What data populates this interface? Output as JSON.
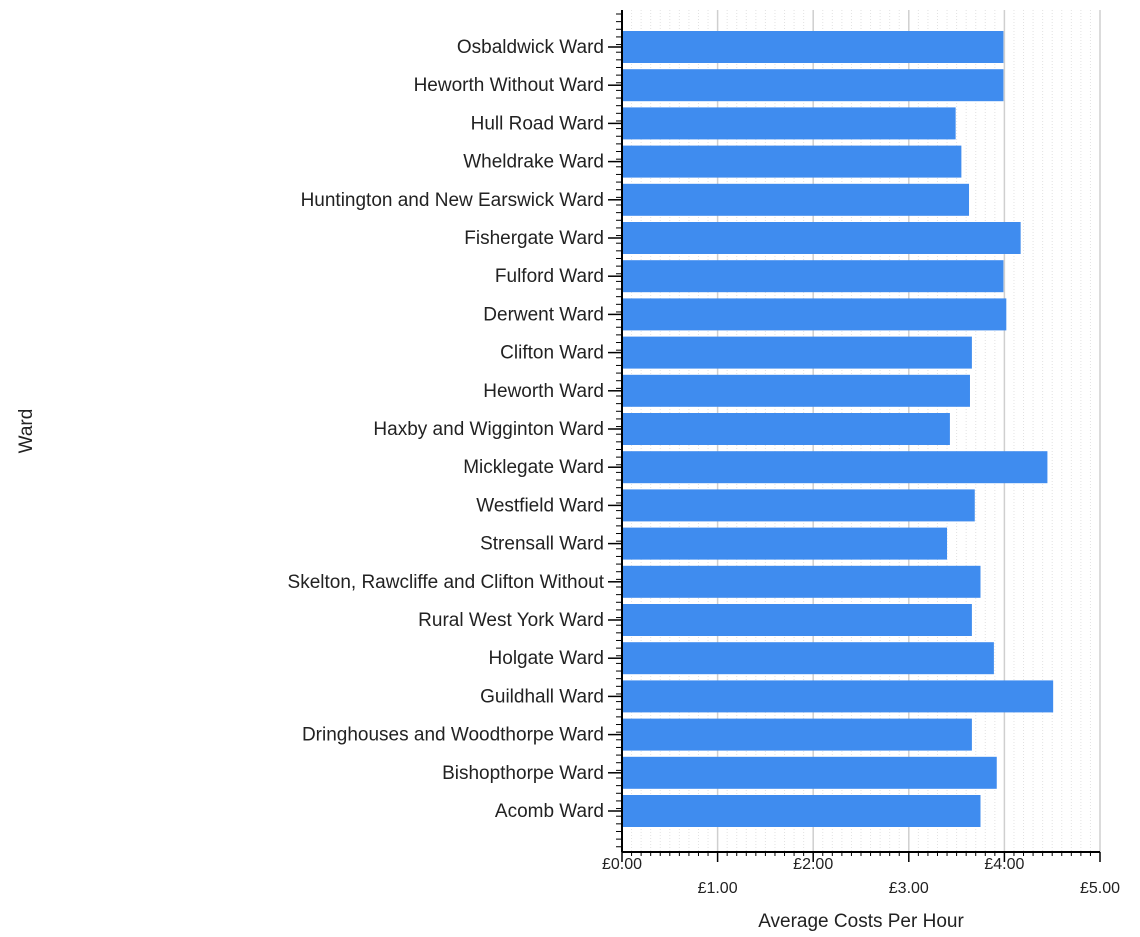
{
  "chart_data": {
    "type": "bar",
    "orientation": "horizontal",
    "xlabel": "Average Costs Per Hour",
    "ylabel": "Ward",
    "xlim": [
      0,
      5
    ],
    "x_ticks": [
      {
        "value": 0,
        "label": "£0.00"
      },
      {
        "value": 1,
        "label": "£1.00"
      },
      {
        "value": 2,
        "label": "£2.00"
      },
      {
        "value": 3,
        "label": "£3.00"
      },
      {
        "value": 4,
        "label": "£4.00"
      },
      {
        "value": 5,
        "label": "£5.00"
      }
    ],
    "grid": true,
    "bar_color": "#3f8cef",
    "categories": [
      "Osbaldwick Ward",
      "Heworth Without Ward",
      "Hull Road Ward",
      "Wheldrake Ward",
      "Huntington and New Earswick Ward",
      "Fishergate Ward",
      "Fulford Ward",
      "Derwent Ward",
      "Clifton Ward",
      "Heworth Ward",
      "Haxby and Wigginton Ward",
      "Micklegate Ward",
      "Westfield Ward",
      "Strensall Ward",
      "Skelton, Rawcliffe and Clifton Without",
      "Rural West York Ward",
      "Holgate Ward",
      "Guildhall Ward",
      "Dringhouses and Woodthorpe Ward",
      "Bishopthorpe Ward",
      "Acomb Ward"
    ],
    "values": [
      3.99,
      3.99,
      3.49,
      3.55,
      3.63,
      4.17,
      3.99,
      4.02,
      3.66,
      3.64,
      3.43,
      4.45,
      3.69,
      3.4,
      3.75,
      3.66,
      3.89,
      4.51,
      3.66,
      3.92,
      3.75
    ]
  }
}
